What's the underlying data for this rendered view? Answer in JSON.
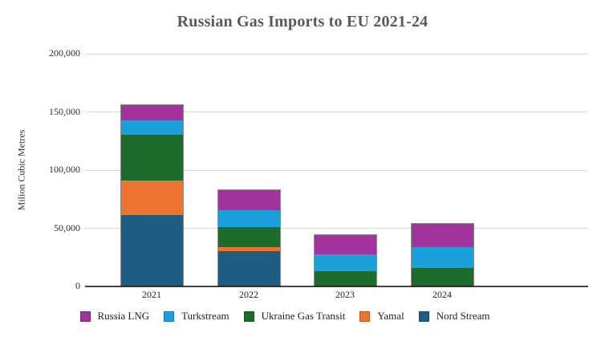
{
  "chart_data": {
    "type": "bar",
    "stacked": true,
    "title": "Russian Gas Imports to EU 2021-24",
    "ylabel": "Milion Cubic Metres",
    "xlabel": "",
    "categories": [
      "2021",
      "2022",
      "2023",
      "2024"
    ],
    "series": [
      {
        "name": "Nord Stream",
        "color": "#1f5e82",
        "values": [
          61000,
          30500,
          0,
          0
        ]
      },
      {
        "name": "Yamal",
        "color": "#ed7430",
        "values": [
          30500,
          3500,
          0,
          0
        ]
      },
      {
        "name": "Ukraine Gas Transit",
        "color": "#1e6c2b",
        "values": [
          39500,
          17500,
          13000,
          15500
        ]
      },
      {
        "name": "Turkstream",
        "color": "#1ca0db",
        "values": [
          12500,
          14500,
          14500,
          18500
        ]
      },
      {
        "name": "Russia LNG",
        "color": "#a2339c",
        "values": [
          13000,
          17500,
          17500,
          20500
        ]
      }
    ],
    "totals": [
      156500,
      83500,
      45000,
      54500
    ],
    "ylim": [
      0,
      200000
    ],
    "yticks": [
      {
        "value": 0,
        "label": "0"
      },
      {
        "value": 50000,
        "label": "50,000"
      },
      {
        "value": 100000,
        "label": "100,000"
      },
      {
        "value": 150000,
        "label": "150,000"
      },
      {
        "value": 200000,
        "label": "200,000"
      }
    ],
    "grid": "horizontal",
    "legend_position": "bottom",
    "legend_order": [
      "Russia LNG",
      "Turkstream",
      "Ukraine Gas Transit",
      "Yamal",
      "Nord Stream"
    ]
  }
}
